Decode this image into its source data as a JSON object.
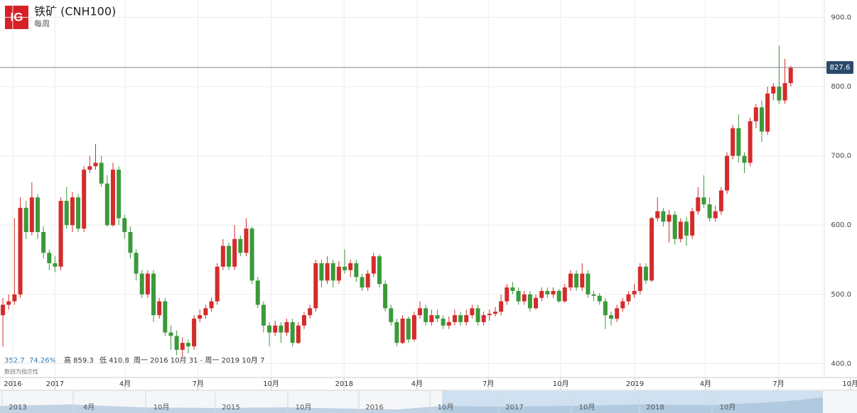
{
  "chart_data": {
    "type": "candlestick",
    "title": "铁矿 (CNH100)",
    "subtitle": "每周",
    "logo": "IG",
    "last_price": 827.6,
    "stats": {
      "change": "352.7",
      "change_pct": "74.26%",
      "high": "高 859.3",
      "low": "低 410.8",
      "range": "周一 2016 10月 31 - 周一 2019 10月 7",
      "note": "数据为指示性"
    },
    "up_color": "#d42b2b",
    "down_color": "#3a9a3a",
    "ylim": [
      380,
      925
    ],
    "yticks": [
      {
        "value": 400,
        "label": "400.0"
      },
      {
        "value": 500,
        "label": "500.0"
      },
      {
        "value": 600,
        "label": "600.0"
      },
      {
        "value": 700,
        "label": "700.0"
      },
      {
        "value": 800,
        "label": "800.0"
      },
      {
        "value": 900,
        "label": "900.0"
      }
    ],
    "xlim": [
      -0.5,
      141.8
    ],
    "xticks": [
      {
        "value": 1.7,
        "label": "2016"
      },
      {
        "value": 9.0,
        "label": "2017"
      },
      {
        "value": 21.1,
        "label": "4月"
      },
      {
        "value": 33.7,
        "label": "7月"
      },
      {
        "value": 46.3,
        "label": "10月"
      },
      {
        "value": 58.9,
        "label": "2018"
      },
      {
        "value": 71.5,
        "label": "4月"
      },
      {
        "value": 83.8,
        "label": "7月"
      },
      {
        "value": 96.3,
        "label": "10月"
      },
      {
        "value": 109.1,
        "label": "2019"
      },
      {
        "value": 121.3,
        "label": "4月"
      },
      {
        "value": 133.9,
        "label": "7月"
      },
      {
        "value": 146.3,
        "label": "10月"
      }
    ],
    "grid": true,
    "open": [
      470,
      485,
      490,
      500,
      625,
      590,
      640,
      590,
      560,
      545,
      540,
      635,
      600,
      640,
      595,
      680,
      685,
      690,
      660,
      600,
      680,
      610,
      590,
      560,
      530,
      500,
      530,
      470,
      490,
      445,
      440,
      420,
      430,
      425,
      465,
      470,
      480,
      490,
      540,
      570,
      540,
      580,
      560,
      595,
      520,
      485,
      455,
      445,
      455,
      445,
      460,
      430,
      455,
      470,
      480,
      545,
      520,
      545,
      520,
      540,
      535,
      545,
      525,
      510,
      530,
      555,
      515,
      480,
      460,
      430,
      465,
      435,
      470,
      480,
      460,
      470,
      465,
      455,
      460,
      470,
      460,
      470,
      480,
      460,
      470,
      472,
      475,
      490,
      510,
      505,
      490,
      500,
      480,
      495,
      505,
      500,
      505,
      490,
      510,
      530,
      510,
      530,
      500,
      498,
      490,
      470,
      465,
      480,
      490,
      500,
      505,
      540,
      520,
      610,
      620,
      605,
      615,
      580,
      605,
      585,
      620,
      640,
      630,
      610,
      620,
      650,
      700,
      740,
      700,
      690,
      750,
      770,
      735,
      790,
      800,
      780,
      805
    ],
    "high": [
      495,
      500,
      610,
      640,
      635,
      662,
      645,
      598,
      565,
      555,
      640,
      655,
      648,
      645,
      685,
      700,
      717,
      700,
      672,
      690,
      685,
      615,
      598,
      565,
      535,
      535,
      535,
      495,
      495,
      455,
      448,
      438,
      435,
      470,
      478,
      485,
      495,
      545,
      580,
      575,
      600,
      585,
      610,
      598,
      525,
      490,
      460,
      462,
      460,
      465,
      465,
      460,
      475,
      485,
      550,
      550,
      555,
      550,
      548,
      565,
      550,
      550,
      530,
      535,
      560,
      558,
      520,
      485,
      465,
      470,
      468,
      475,
      490,
      485,
      478,
      478,
      470,
      468,
      478,
      475,
      478,
      485,
      485,
      475,
      478,
      482,
      500,
      515,
      518,
      510,
      505,
      505,
      500,
      510,
      510,
      510,
      508,
      515,
      535,
      535,
      545,
      535,
      505,
      502,
      495,
      475,
      485,
      495,
      505,
      515,
      545,
      545,
      612,
      640,
      625,
      622,
      620,
      610,
      612,
      625,
      655,
      672,
      640,
      628,
      655,
      705,
      745,
      760,
      705,
      755,
      775,
      780,
      800,
      805,
      859.3,
      840,
      830
    ],
    "low": [
      425,
      478,
      485,
      495,
      580,
      585,
      580,
      552,
      535,
      532,
      535,
      595,
      590,
      590,
      590,
      675,
      680,
      655,
      598,
      598,
      600,
      580,
      552,
      520,
      495,
      495,
      460,
      465,
      440,
      420,
      412,
      410.8,
      415,
      420,
      460,
      465,
      475,
      485,
      535,
      535,
      535,
      555,
      555,
      515,
      480,
      445,
      425,
      440,
      430,
      440,
      425,
      428,
      450,
      465,
      475,
      510,
      515,
      510,
      515,
      530,
      525,
      518,
      505,
      505,
      525,
      510,
      475,
      455,
      425,
      428,
      430,
      432,
      465,
      455,
      455,
      460,
      450,
      450,
      455,
      455,
      455,
      465,
      455,
      455,
      462,
      468,
      470,
      485,
      500,
      485,
      485,
      475,
      478,
      490,
      495,
      495,
      488,
      488,
      505,
      505,
      505,
      495,
      490,
      485,
      450,
      455,
      460,
      475,
      485,
      495,
      500,
      515,
      518,
      605,
      598,
      575,
      572,
      575,
      570,
      580,
      615,
      625,
      605,
      605,
      615,
      645,
      695,
      690,
      675,
      685,
      740,
      720,
      730,
      780,
      775,
      775,
      800
    ],
    "close": [
      485,
      490,
      500,
      625,
      590,
      640,
      590,
      560,
      545,
      540,
      635,
      600,
      640,
      595,
      680,
      685,
      690,
      660,
      600,
      680,
      610,
      590,
      560,
      530,
      500,
      530,
      470,
      490,
      445,
      440,
      420,
      430,
      425,
      465,
      470,
      480,
      490,
      540,
      570,
      540,
      580,
      560,
      595,
      520,
      485,
      455,
      445,
      455,
      445,
      460,
      430,
      455,
      470,
      480,
      545,
      520,
      545,
      520,
      540,
      535,
      545,
      525,
      510,
      530,
      555,
      515,
      480,
      460,
      430,
      465,
      435,
      470,
      480,
      460,
      470,
      465,
      455,
      460,
      470,
      460,
      470,
      480,
      460,
      470,
      472,
      475,
      490,
      510,
      505,
      490,
      500,
      480,
      495,
      505,
      500,
      505,
      490,
      510,
      530,
      510,
      530,
      500,
      498,
      490,
      470,
      465,
      480,
      490,
      500,
      505,
      540,
      520,
      610,
      620,
      605,
      615,
      580,
      605,
      585,
      620,
      640,
      630,
      610,
      620,
      650,
      700,
      740,
      700,
      690,
      750,
      770,
      735,
      790,
      800,
      780,
      805,
      827.6
    ],
    "navigator": {
      "labels": [
        "2013",
        "4月",
        "10月",
        "2015",
        "10月",
        "2016",
        "10月",
        "2017",
        "10月",
        "2018",
        "10月"
      ]
    }
  }
}
